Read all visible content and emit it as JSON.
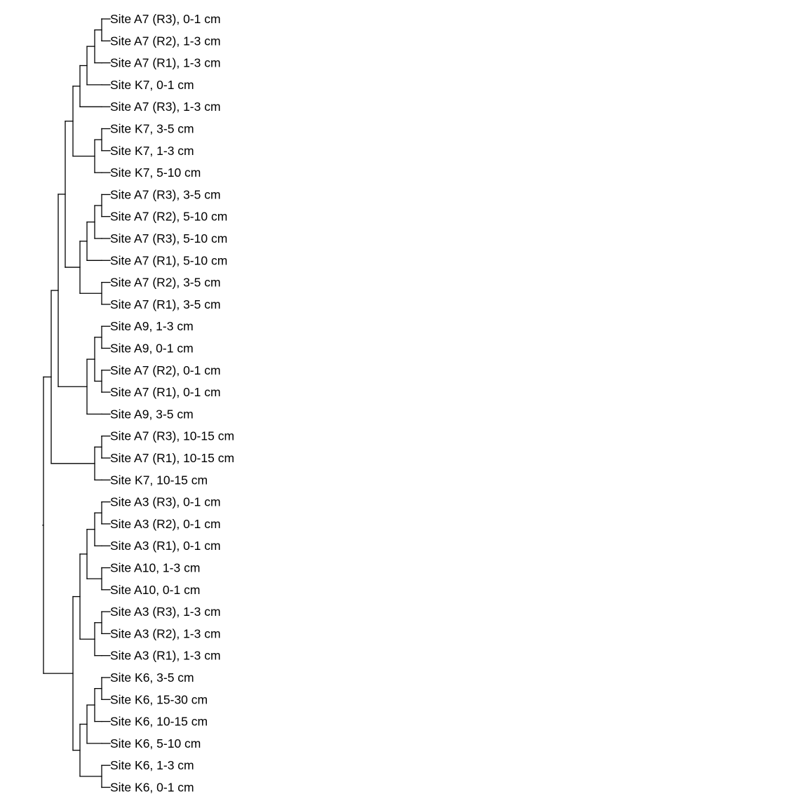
{
  "diagram": {
    "type": "dendrogram",
    "line_color": "#000000",
    "leaves": [
      "Site A7 (R3), 0-1 cm",
      "Site A7 (R2), 1-3 cm",
      "Site A7 (R1), 1-3 cm",
      "Site K7, 0-1 cm",
      "Site A7 (R3), 1-3 cm",
      "Site K7, 3-5 cm",
      "Site K7, 1-3 cm",
      "Site K7, 5-10 cm",
      "Site A7 (R3), 3-5 cm",
      "Site A7 (R2), 5-10 cm",
      "Site A7 (R3), 5-10 cm",
      "Site A7 (R1), 5-10 cm",
      "Site A7 (R2), 3-5 cm",
      "Site A7 (R1), 3-5 cm",
      "Site A9, 1-3 cm",
      "Site A9, 0-1 cm",
      "Site A7 (R2), 0-1 cm",
      "Site A7 (R1), 0-1 cm",
      "Site A9, 3-5 cm",
      "Site A7 (R3), 10-15 cm",
      "Site A7 (R1), 10-15 cm",
      "Site K7, 10-15 cm",
      "Site A3 (R3), 0-1 cm",
      "Site A3 (R2), 0-1 cm",
      "Site A3 (R1), 0-1 cm",
      "Site A10, 1-3 cm",
      "Site A10, 0-1 cm",
      "Site A3 (R3), 1-3 cm",
      "Site A3 (R2), 1-3 cm",
      "Site A3 (R1), 1-3 cm",
      "Site K6, 3-5 cm",
      "Site K6, 15-30 cm",
      "Site K6, 10-15 cm",
      "Site K6, 5-10 cm",
      "Site K6, 1-3 cm",
      "Site K6, 0-1 cm"
    ]
  }
}
